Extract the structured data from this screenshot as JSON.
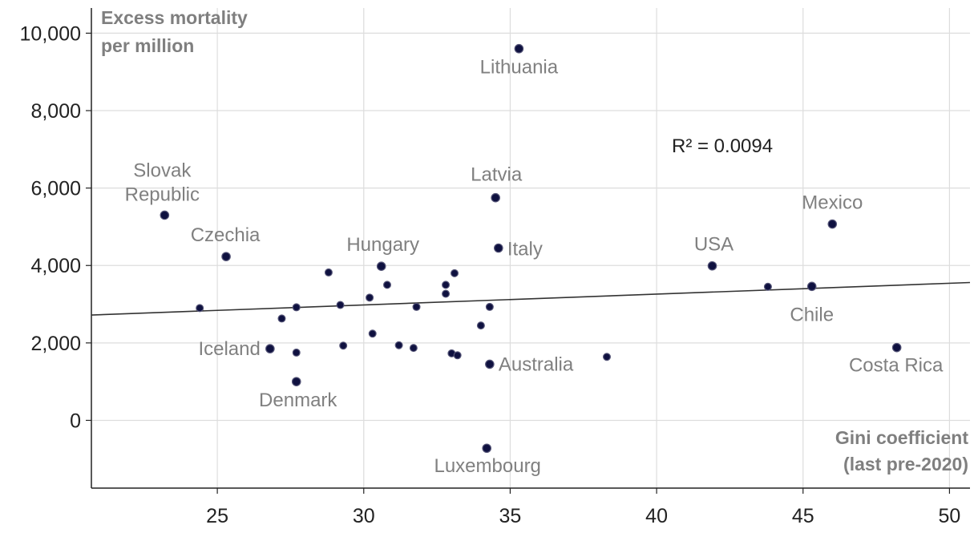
{
  "chart_data": {
    "type": "scatter",
    "title": "",
    "xlabel": "Gini coefficient (last pre-2020)",
    "xlabel_lines": [
      "Gini coefficient",
      "(last pre-2020)"
    ],
    "ylabel": "Excess mortality per million",
    "ylabel_lines": [
      "Excess mortality",
      "per million"
    ],
    "xlim": [
      20.7,
      50.7
    ],
    "ylim": [
      -1750,
      10650
    ],
    "xticks": [
      25,
      30,
      35,
      40,
      45,
      50
    ],
    "xtick_labels": [
      "25",
      "30",
      "35",
      "40",
      "45",
      "50"
    ],
    "yticks": [
      0,
      2000,
      4000,
      6000,
      8000,
      10000
    ],
    "ytick_labels": [
      "0",
      "2,000",
      "4,000",
      "6,000",
      "8,000",
      "10,000"
    ],
    "grid": true,
    "annotation": "R² = 0.0094",
    "trendline": {
      "x": [
        20.7,
        50.7
      ],
      "y": [
        2720,
        3560
      ]
    },
    "colors": {
      "point": "#0f1140",
      "line": "#333333",
      "grid": "#dddddd",
      "label": "#808080"
    },
    "points": [
      {
        "x": 35.3,
        "y": 9600,
        "label": "Lithuania"
      },
      {
        "x": 34.5,
        "y": 5750,
        "label": "Latvia"
      },
      {
        "x": 23.2,
        "y": 5300,
        "label": "Slovak Republic"
      },
      {
        "x": 25.3,
        "y": 4230,
        "label": "Czechia"
      },
      {
        "x": 30.6,
        "y": 3980,
        "label": "Hungary"
      },
      {
        "x": 34.6,
        "y": 4450,
        "label": "Italy"
      },
      {
        "x": 41.9,
        "y": 3990,
        "label": "USA"
      },
      {
        "x": 46.0,
        "y": 5070,
        "label": "Mexico"
      },
      {
        "x": 45.3,
        "y": 3460,
        "label": "Chile"
      },
      {
        "x": 48.2,
        "y": 1880,
        "label": "Costa Rica"
      },
      {
        "x": 26.8,
        "y": 1850,
        "label": "Iceland"
      },
      {
        "x": 27.7,
        "y": 1000,
        "label": "Denmark"
      },
      {
        "x": 34.3,
        "y": 1450,
        "label": "Australia"
      },
      {
        "x": 34.2,
        "y": -720,
        "label": "Luxembourg"
      },
      {
        "x": 24.4,
        "y": 2900,
        "label": ""
      },
      {
        "x": 27.2,
        "y": 2630,
        "label": ""
      },
      {
        "x": 27.7,
        "y": 2920,
        "label": ""
      },
      {
        "x": 27.7,
        "y": 1750,
        "label": ""
      },
      {
        "x": 28.8,
        "y": 3820,
        "label": ""
      },
      {
        "x": 29.2,
        "y": 2980,
        "label": ""
      },
      {
        "x": 29.3,
        "y": 1930,
        "label": ""
      },
      {
        "x": 30.2,
        "y": 3170,
        "label": ""
      },
      {
        "x": 30.3,
        "y": 2240,
        "label": ""
      },
      {
        "x": 30.8,
        "y": 3500,
        "label": ""
      },
      {
        "x": 31.2,
        "y": 1940,
        "label": ""
      },
      {
        "x": 31.7,
        "y": 1870,
        "label": ""
      },
      {
        "x": 31.8,
        "y": 2930,
        "label": ""
      },
      {
        "x": 32.8,
        "y": 3500,
        "label": ""
      },
      {
        "x": 32.8,
        "y": 3270,
        "label": ""
      },
      {
        "x": 33.0,
        "y": 1730,
        "label": ""
      },
      {
        "x": 33.1,
        "y": 3800,
        "label": ""
      },
      {
        "x": 33.2,
        "y": 1680,
        "label": ""
      },
      {
        "x": 34.0,
        "y": 2450,
        "label": ""
      },
      {
        "x": 34.3,
        "y": 2930,
        "label": ""
      },
      {
        "x": 38.3,
        "y": 1640,
        "label": ""
      },
      {
        "x": 43.8,
        "y": 3450,
        "label": ""
      }
    ]
  }
}
